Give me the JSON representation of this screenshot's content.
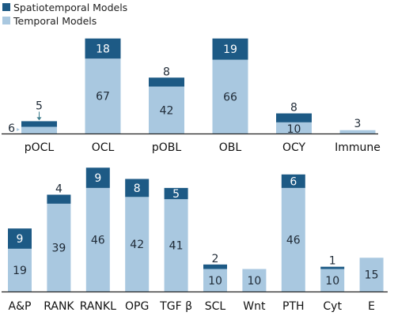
{
  "colors": {
    "spatiotemporal": "#1d5a85",
    "temporal": "#a9c8e0",
    "axis": "#222222",
    "label_dark": "#1f2a36",
    "label_light": "#ffffff"
  },
  "legend": {
    "spatiotemporal": "Spatiotemporal Models",
    "temporal": "Temporal Models"
  },
  "chart_data": [
    {
      "type": "bar",
      "stacked": true,
      "categories": [
        "pOCL",
        "OCL",
        "pOBL",
        "OBL",
        "OCY",
        "Immune"
      ],
      "series": [
        {
          "name": "Temporal Models",
          "values": [
            6,
            67,
            42,
            66,
            10,
            3
          ]
        },
        {
          "name": "Spatiotemporal Models",
          "values": [
            5,
            18,
            8,
            19,
            8,
            0
          ]
        }
      ]
    },
    {
      "type": "bar",
      "stacked": true,
      "categories": [
        "A&P",
        "RANK",
        "RANKL",
        "OPG",
        "TGF β",
        "SCL",
        "Wnt",
        "PTH",
        "Cyt",
        "E"
      ],
      "series": [
        {
          "name": "Temporal Models",
          "values": [
            19,
            39,
            46,
            42,
            41,
            10,
            10,
            46,
            10,
            15
          ]
        },
        {
          "name": "Spatiotemporal Models",
          "values": [
            9,
            4,
            9,
            8,
            5,
            2,
            0,
            6,
            1,
            0
          ]
        }
      ]
    }
  ]
}
